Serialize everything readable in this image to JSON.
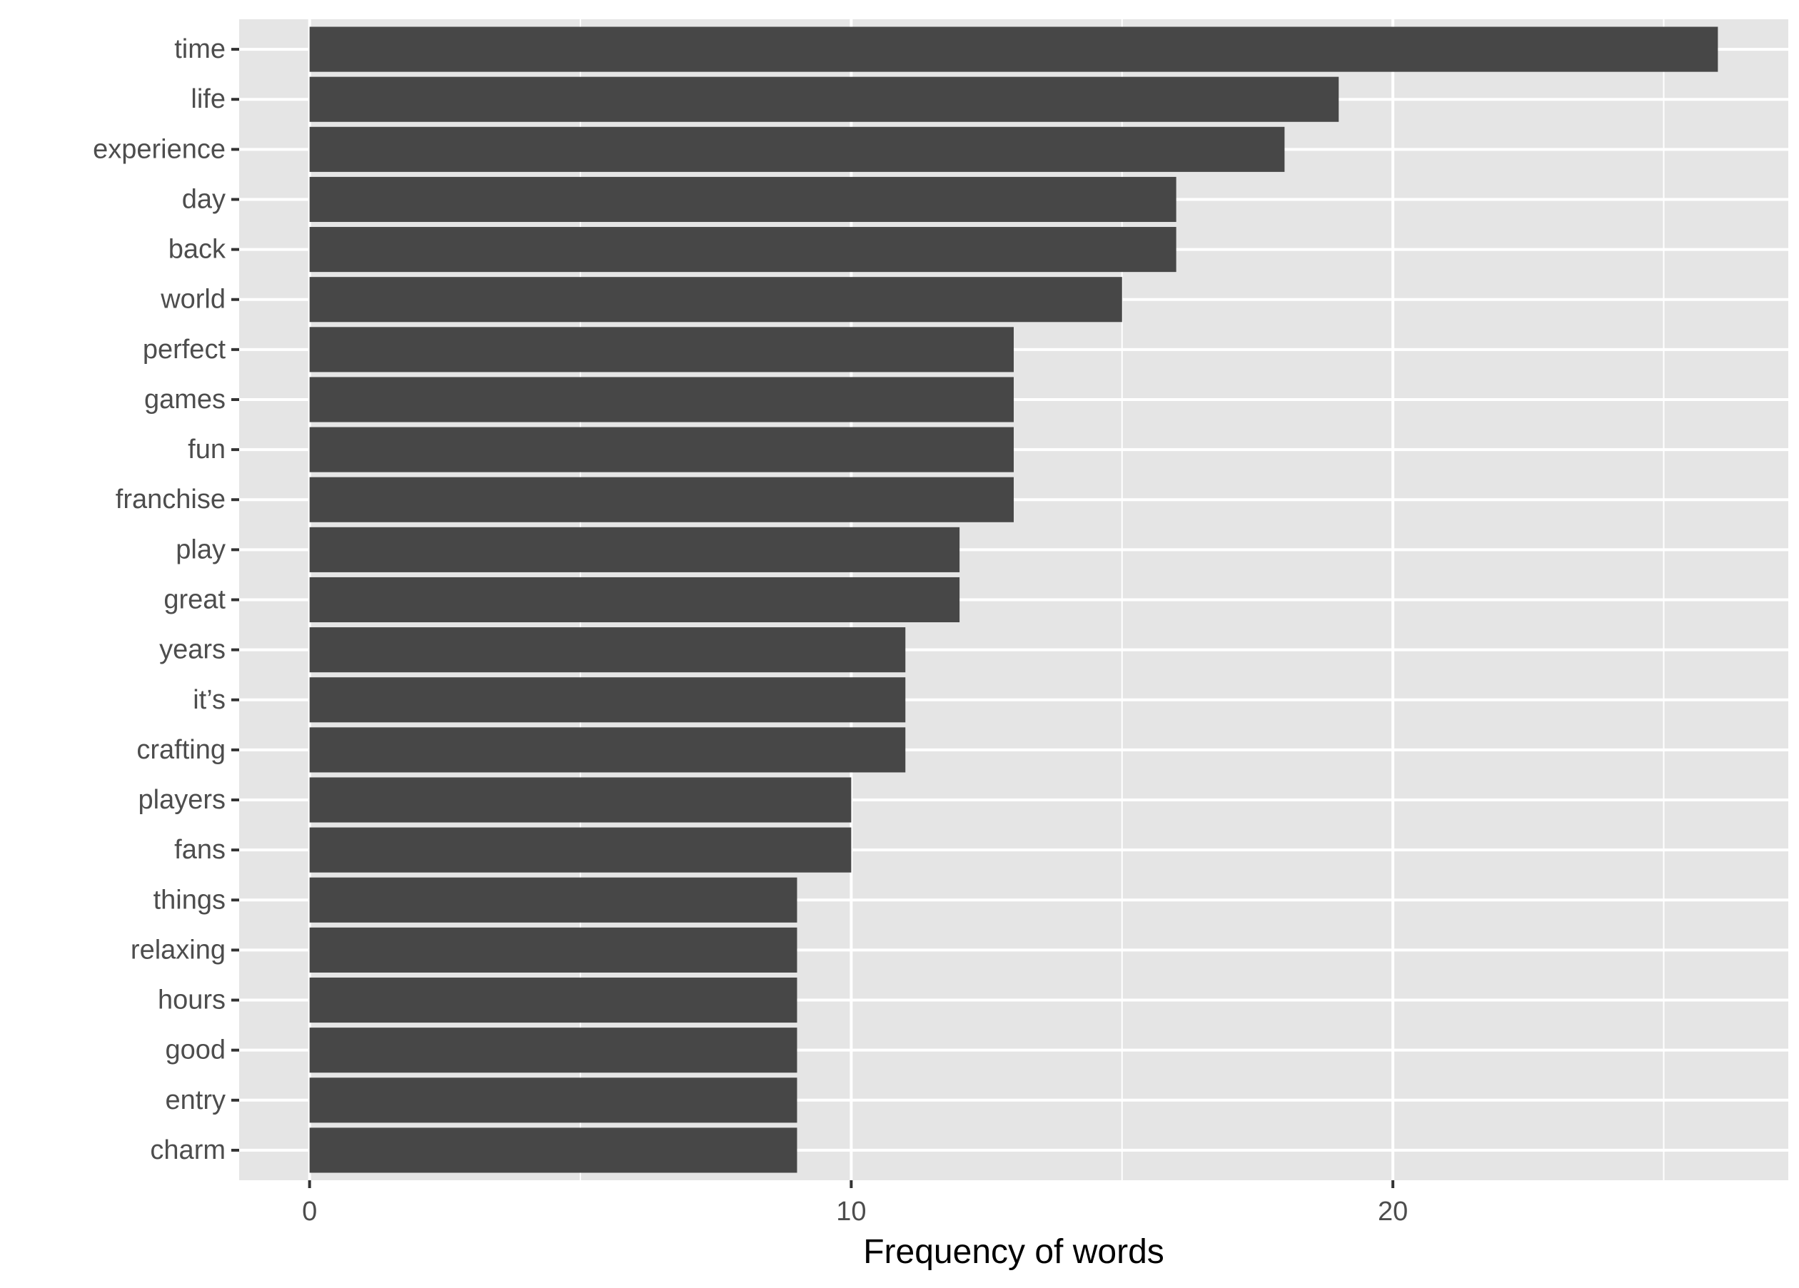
{
  "chart_data": {
    "type": "bar",
    "orientation": "horizontal",
    "title": "",
    "xlabel": "Frequency of words",
    "ylabel": "",
    "xlim": [
      -1.3,
      27.3
    ],
    "xticks": [
      0,
      10,
      20
    ],
    "grid": true,
    "legend": "none",
    "categories": [
      "time",
      "life",
      "experience",
      "day",
      "back",
      "world",
      "perfect",
      "games",
      "fun",
      "franchise",
      "play",
      "great",
      "years",
      "it’s",
      "crafting",
      "players",
      "fans",
      "things",
      "relaxing",
      "hours",
      "good",
      "entry",
      "charm"
    ],
    "values": [
      26,
      19,
      18,
      16,
      16,
      15,
      13,
      13,
      13,
      13,
      12,
      12,
      11,
      11,
      11,
      10,
      10,
      9,
      9,
      9,
      9,
      9,
      9
    ],
    "colors": {
      "panel": "#e5e5e5",
      "bar": "#474747",
      "grid": "#ffffff",
      "axis_text": "#4d4d4d",
      "title_text": "#000000"
    }
  }
}
